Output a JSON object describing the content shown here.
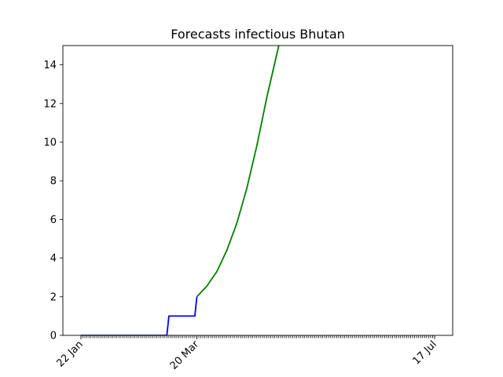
{
  "chart_data": {
    "type": "line",
    "title": "Forecasts infectious Bhutan",
    "xlabel": "",
    "ylabel": "",
    "x_tick_labels": [
      {
        "date": "2020-01-22",
        "label": "22 Jan"
      },
      {
        "date": "2020-03-20",
        "label": "20 Mar"
      },
      {
        "date": "2020-07-17",
        "label": "17 Jul"
      }
    ],
    "xlim": [
      "2020-01-22",
      "2020-07-17"
    ],
    "ylim": [
      0,
      15
    ],
    "y_ticks": [
      0,
      2,
      4,
      6,
      8,
      10,
      12,
      14
    ],
    "grid": false,
    "series": [
      {
        "color": "#0000ff",
        "x": [
          "2020-01-22",
          "2020-03-05",
          "2020-03-06",
          "2020-03-19",
          "2020-03-20"
        ],
        "y": [
          0,
          0,
          1,
          1,
          2
        ]
      },
      {
        "color": "#008000",
        "x": [
          "2020-03-20",
          "2020-03-25",
          "2020-03-30",
          "2020-04-04",
          "2020-04-09",
          "2020-04-14",
          "2020-04-19",
          "2020-04-24",
          "2020-04-30"
        ],
        "y": [
          2.0,
          2.55,
          3.3,
          4.4,
          5.8,
          7.6,
          9.8,
          12.3,
          15.0
        ]
      }
    ]
  }
}
